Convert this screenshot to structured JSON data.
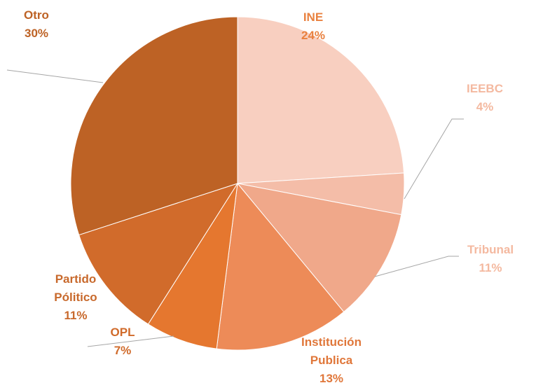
{
  "chart_data": {
    "type": "pie",
    "categories": [
      "INE",
      "IEEBC",
      "Tribunal",
      "Institución Publica",
      "OPL",
      "Partido Pólitico",
      "Otro"
    ],
    "values": [
      24,
      4,
      11,
      13,
      7,
      11,
      30
    ],
    "value_labels": [
      "24%",
      "4%",
      "11%",
      "13%",
      "7%",
      "11%",
      "30%"
    ],
    "colors": [
      "#f8cfc0",
      "#f4bda8",
      "#f0a88a",
      "#ed8b58",
      "#e5772f",
      "#d16b2b",
      "#bd6225"
    ],
    "label_colors": [
      "#e9813f",
      "#f4b9a0",
      "#f4b9a0",
      "#e0773a",
      "#d06a2a",
      "#c8692c",
      "#bd6225"
    ]
  }
}
